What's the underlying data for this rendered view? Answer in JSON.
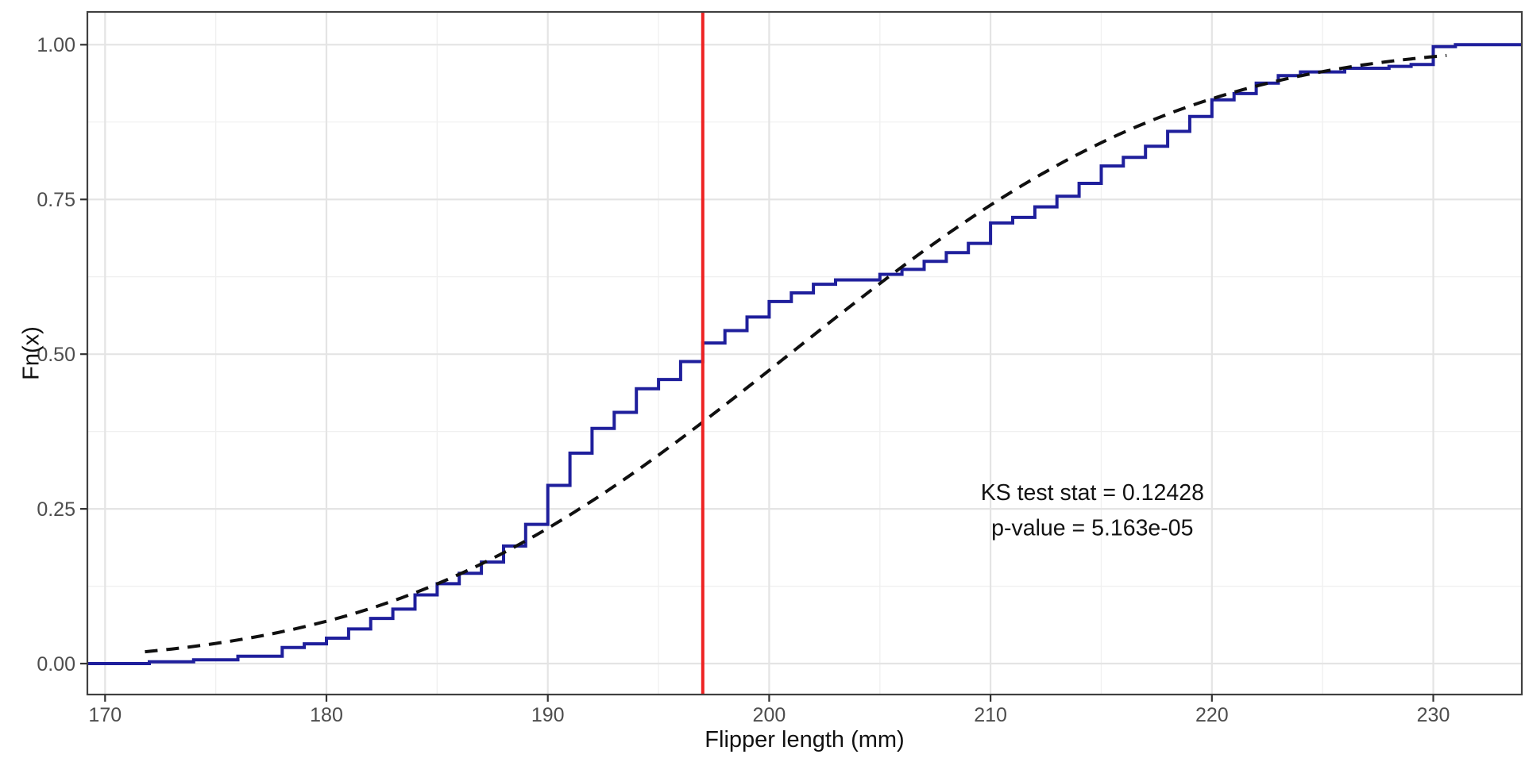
{
  "figure": {
    "background": "#ffffff",
    "panel_border_color": "#404040",
    "grid_major_color": "#e4e4e4",
    "grid_minor_color": "#f0f0f0",
    "tick_color": "#333333",
    "tick_label_color": "#4d4d4d",
    "title_color": "#111111"
  },
  "chart_data": {
    "type": "line",
    "subtype": "ecdf-with-theoretical-normal-cdf",
    "title": "",
    "xlabel": "Flipper length (mm)",
    "ylabel": "Fn(x)",
    "xlim": [
      169.2,
      234.0
    ],
    "ylim": [
      -0.05,
      1.053
    ],
    "grid": "on",
    "legend": "none",
    "x_ticks": {
      "values": [
        170,
        180,
        190,
        200,
        210,
        220,
        230
      ],
      "labels": [
        "170",
        "180",
        "190",
        "200",
        "210",
        "220",
        "230"
      ]
    },
    "y_ticks": {
      "values": [
        0,
        0.25,
        0.5,
        0.75,
        1.0
      ],
      "labels": [
        "0.00",
        "0.25",
        "0.50",
        "0.75",
        "1.00"
      ]
    },
    "x_minor": [
      175,
      185,
      195,
      205,
      215,
      225
    ],
    "y_minor": [
      0.125,
      0.375,
      0.625,
      0.875
    ],
    "series": [
      {
        "name": "empirical-cdf",
        "type": "step",
        "color": "#1f1f9c",
        "line_width": 4,
        "start_x": 169.2,
        "end_x": 234.0,
        "points": [
          [
            172,
            0.003
          ],
          [
            174,
            0.006
          ],
          [
            176,
            0.012
          ],
          [
            178,
            0.026
          ],
          [
            179,
            0.032
          ],
          [
            180,
            0.041
          ],
          [
            181,
            0.056
          ],
          [
            182,
            0.073
          ],
          [
            183,
            0.088
          ],
          [
            184,
            0.111
          ],
          [
            185,
            0.129
          ],
          [
            186,
            0.146
          ],
          [
            187,
            0.164
          ],
          [
            188,
            0.19
          ],
          [
            189,
            0.225
          ],
          [
            190,
            0.288
          ],
          [
            191,
            0.34
          ],
          [
            192,
            0.38
          ],
          [
            193,
            0.406
          ],
          [
            194,
            0.444
          ],
          [
            195,
            0.459
          ],
          [
            196,
            0.488
          ],
          [
            197,
            0.518
          ],
          [
            198,
            0.538
          ],
          [
            199,
            0.56
          ],
          [
            200,
            0.585
          ],
          [
            201,
            0.599
          ],
          [
            202,
            0.613
          ],
          [
            203,
            0.62
          ],
          [
            205,
            0.629
          ],
          [
            206,
            0.637
          ],
          [
            207,
            0.65
          ],
          [
            208,
            0.664
          ],
          [
            209,
            0.679
          ],
          [
            210,
            0.712
          ],
          [
            211,
            0.721
          ],
          [
            212,
            0.738
          ],
          [
            213,
            0.755
          ],
          [
            214,
            0.776
          ],
          [
            215,
            0.804
          ],
          [
            216,
            0.818
          ],
          [
            217,
            0.836
          ],
          [
            218,
            0.86
          ],
          [
            219,
            0.884
          ],
          [
            220,
            0.911
          ],
          [
            221,
            0.921
          ],
          [
            222,
            0.938
          ],
          [
            223,
            0.95
          ],
          [
            224,
            0.956
          ],
          [
            226,
            0.962
          ],
          [
            228,
            0.965
          ],
          [
            229,
            0.968
          ],
          [
            230,
            0.997
          ],
          [
            231,
            1.0
          ]
        ]
      },
      {
        "name": "theoretical-normal-cdf",
        "type": "normal-cdf",
        "color": "#101010",
        "line_style": "dashed",
        "line_width": 4,
        "dash": [
          16,
          11
        ],
        "mean": 200.92,
        "sd": 14.06,
        "x_start": 171.8,
        "x_end": 230.8
      },
      {
        "name": "median-vline",
        "type": "vline",
        "x": 197,
        "color": "#ee2222",
        "line_width": 4
      }
    ],
    "annotations": [
      {
        "text": "KS test stat = 0.12428",
        "x": 214.6,
        "y": 0.277
      },
      {
        "text": "p-value = 5.163e-05",
        "x": 214.6,
        "y": 0.22
      }
    ]
  }
}
